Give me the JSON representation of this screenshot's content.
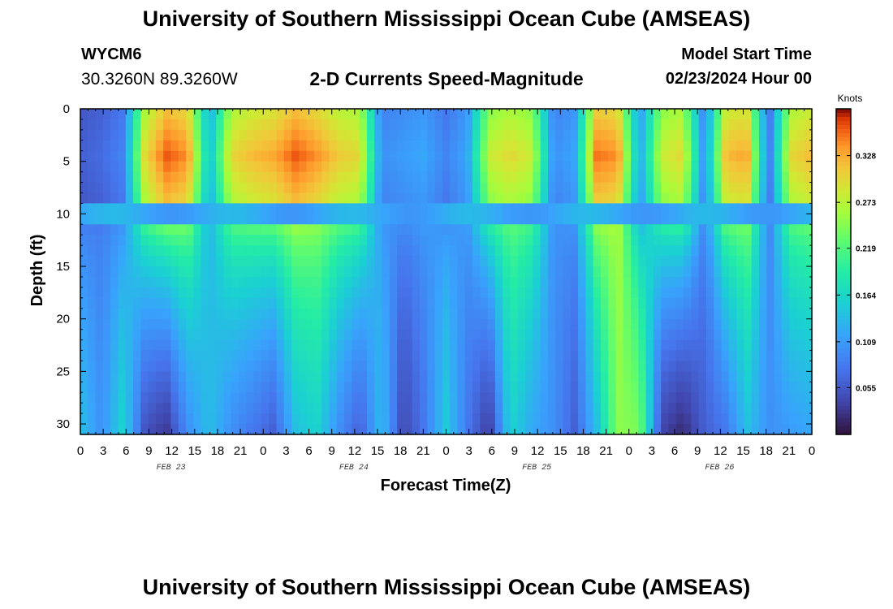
{
  "header": {
    "title": "University of Southern Mississippi Ocean Cube (AMSEAS)",
    "station_id": "WYCM6",
    "station_coords": "30.3260N  89.3260W",
    "subtitle": "2-D Currents Speed-Magnitude",
    "model_start_label": "Model Start Time",
    "model_start_value": "02/23/2024 Hour 00"
  },
  "footer": {
    "title": "University of Southern Mississippi Ocean Cube (AMSEAS)"
  },
  "chart_data": {
    "type": "heatmap",
    "title": "2-D Currents Speed-Magnitude",
    "xlabel": "Forecast Time(Z)",
    "ylabel": "Depth (ft)",
    "x_range_hours": [
      0,
      96
    ],
    "y_range_ft": [
      0,
      31
    ],
    "y_inverted": true,
    "x_ticks": [
      "0",
      "3",
      "6",
      "9",
      "12",
      "15",
      "18",
      "21",
      "0",
      "3",
      "6",
      "9",
      "12",
      "15",
      "18",
      "21",
      "0",
      "3",
      "6",
      "9",
      "12",
      "15",
      "18",
      "21",
      "0",
      "3",
      "6",
      "9",
      "12",
      "15",
      "18",
      "21",
      "0"
    ],
    "y_ticks": [
      "0",
      "5",
      "10",
      "15",
      "20",
      "25",
      "30"
    ],
    "date_labels": [
      {
        "text": "FEB 23",
        "hour": 12
      },
      {
        "text": "FEB 24",
        "hour": 36
      },
      {
        "text": "FEB 25",
        "hour": 60
      },
      {
        "text": "FEB 26",
        "hour": 84
      }
    ],
    "colorbar": {
      "unit": "Knots",
      "min": 0.0,
      "max": 0.383,
      "ticks": [
        "0.055",
        "0.109",
        "0.164",
        "0.219",
        "0.273",
        "0.328"
      ],
      "tick_values": [
        0.055,
        0.109,
        0.164,
        0.219,
        0.273,
        0.328
      ]
    },
    "surface_layer_speed_knots": [
      0.06,
      0.07,
      0.09,
      0.3,
      0.36,
      0.34,
      0.14,
      0.3,
      0.32,
      0.33,
      0.36,
      0.34,
      0.31,
      0.3,
      0.1,
      0.11,
      0.12,
      0.09,
      0.12,
      0.28,
      0.3,
      0.28,
      0.1,
      0.12,
      0.35,
      0.34,
      0.12,
      0.28,
      0.3,
      0.1,
      0.32,
      0.33,
      0.08,
      0.3,
      0.32
    ],
    "deep_layer_speed_knots": [
      0.14,
      0.1,
      0.16,
      0.05,
      0.03,
      0.1,
      0.14,
      0.1,
      0.08,
      0.06,
      0.14,
      0.16,
      0.1,
      0.06,
      0.14,
      0.04,
      0.08,
      0.15,
      0.08,
      0.03,
      0.16,
      0.12,
      0.1,
      0.06,
      0.14,
      0.25,
      0.24,
      0.04,
      0.02,
      0.06,
      0.08,
      0.14,
      0.1,
      0.11,
      0.12
    ]
  },
  "colors": {
    "background": "#ffffff",
    "axis": "#000000"
  }
}
